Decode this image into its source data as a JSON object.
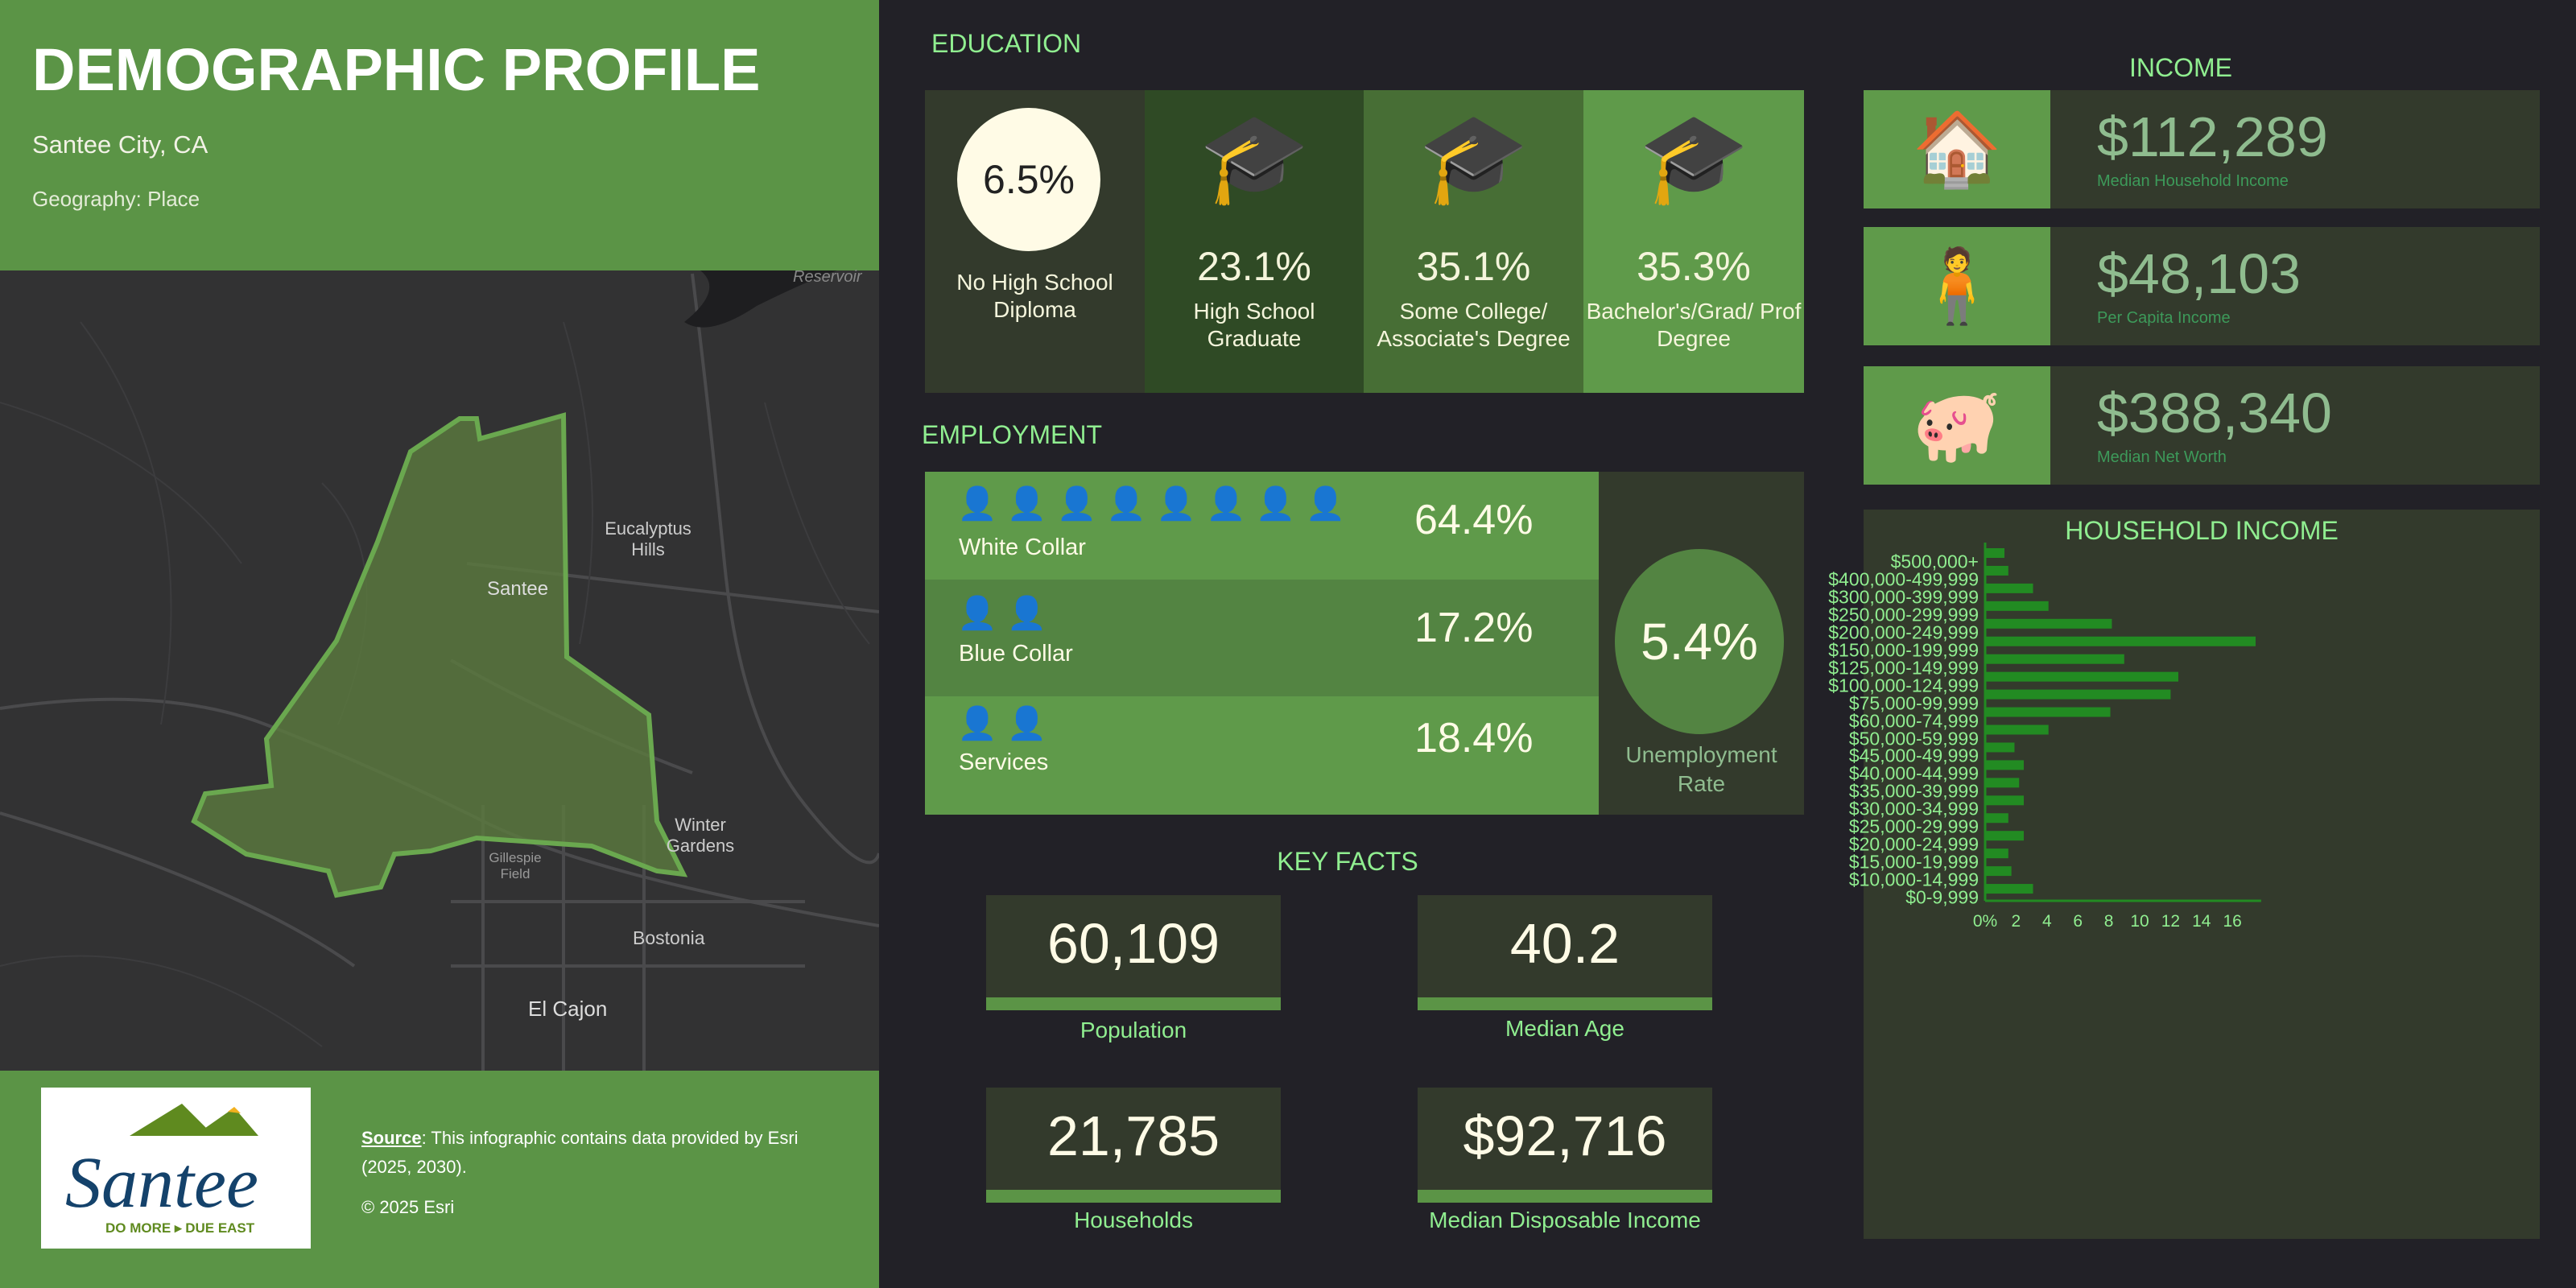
{
  "header": {
    "title": "DEMOGRAPHIC PROFILE",
    "location": "Santee City, CA",
    "geography": "Geography: Place"
  },
  "map": {
    "labels": [
      "Reservoir",
      "Eucalyptus Hills",
      "Santee",
      "Winter Gardens",
      "Gillespie Field",
      "Bostonia",
      "El Cajon"
    ]
  },
  "footer": {
    "logo_text": "Santee",
    "logo_tagline": "DO MORE ▸ DUE EAST",
    "source_label": "Source",
    "source_text": ": This infographic contains data provided by Esri (2025, 2030).",
    "copyright": "© 2025 Esri"
  },
  "education": {
    "title": "EDUCATION",
    "items": [
      {
        "value": "6.5%",
        "label": "No High School Diploma",
        "color": "#333a2c"
      },
      {
        "value": "23.1%",
        "label": "High School Graduate",
        "color": "#2f4a25"
      },
      {
        "value": "35.1%",
        "label": "Some College/ Associate's Degree",
        "color": "#476e35"
      },
      {
        "value": "35.3%",
        "label": "Bachelor's/Grad/ Prof Degree",
        "color": "#5f9a4a"
      }
    ]
  },
  "employment": {
    "title": "EMPLOYMENT",
    "rows": [
      {
        "label": "White Collar",
        "value": "64.4%",
        "icon": "worker-briefcase-icon"
      },
      {
        "label": "Blue Collar",
        "value": "17.2%",
        "icon": "worker-shovel-icon"
      },
      {
        "label": "Services",
        "value": "18.4%",
        "icon": "worker-service-icon"
      }
    ],
    "unemployment": {
      "value": "5.4%",
      "label": "Unemployment Rate"
    }
  },
  "key_facts": {
    "title": "KEY FACTS",
    "items": [
      {
        "value": "60,109",
        "label": "Population"
      },
      {
        "value": "40.2",
        "label": "Median Age"
      },
      {
        "value": "21,785",
        "label": "Households"
      },
      {
        "value": "$92,716",
        "label": "Median Disposable Income"
      }
    ]
  },
  "income": {
    "title": "INCOME",
    "items": [
      {
        "value": "$112,289",
        "label": "Median Household Income",
        "icon": "house-coins-icon"
      },
      {
        "value": "$48,103",
        "label": "Per Capita Income",
        "icon": "person-coins-icon"
      },
      {
        "value": "$388,340",
        "label": "Median Net Worth",
        "icon": "piggy-bank-icon"
      }
    ]
  },
  "chart_data": {
    "type": "bar",
    "orientation": "horizontal",
    "title": "HOUSEHOLD INCOME",
    "bar_color": "#228b22",
    "categories": [
      "$500,000+",
      "$400,000-499,999",
      "$300,000-399,999",
      "$250,000-299,999",
      "$200,000-249,999",
      "$150,000-199,999",
      "$125,000-149,999",
      "$100,000-124,999",
      "$75,000-99,999",
      "$60,000-74,999",
      "$50,000-59,999",
      "$45,000-49,999",
      "$40,000-44,999",
      "$35,000-39,999",
      "$30,000-34,999",
      "$25,000-29,999",
      "$20,000-24,999",
      "$15,000-19,999",
      "$10,000-14,999",
      "$0-9,999"
    ],
    "values": [
      1.25,
      1.5,
      3.1,
      4.1,
      8.2,
      17.5,
      9.0,
      12.5,
      12.0,
      8.1,
      4.1,
      1.9,
      2.5,
      2.2,
      2.5,
      1.5,
      2.5,
      1.5,
      1.7,
      3.1
    ],
    "xlim": [
      0,
      17.6
    ],
    "xticks": [
      "0%",
      "2",
      "4",
      "6",
      "8",
      "10",
      "12",
      "14",
      "16"
    ],
    "grid": false
  }
}
